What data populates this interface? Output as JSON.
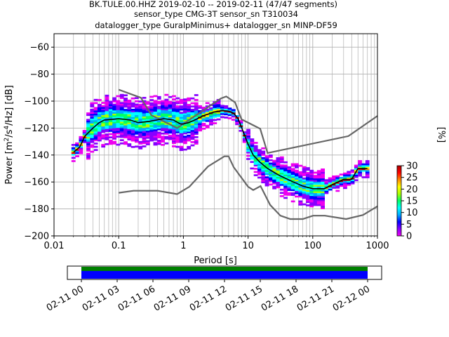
{
  "chart_data": {
    "type": "heatmap",
    "title_lines": [
      "BK.TULE.00.HHZ   2019-02-10 -- 2019-02-11  (47/47 segments)",
      "sensor_type CMG-3T sensor_sn T310034",
      "datalogger_type GuralpMinimus+ datalogger_sn MINP-DF59"
    ],
    "xlabel": "Period [s]",
    "ylabel": "Power [m²/s⁴/Hz] [dB]",
    "x_scale": "log",
    "xlim": [
      0.01,
      1000
    ],
    "ylim": [
      -200,
      -50
    ],
    "x_ticks": [
      {
        "value": 0.01,
        "label": "0.01"
      },
      {
        "value": 0.1,
        "label": "0.1"
      },
      {
        "value": 1,
        "label": "1"
      },
      {
        "value": 10,
        "label": "10"
      },
      {
        "value": 100,
        "label": "100"
      },
      {
        "value": 1000,
        "label": "1000"
      }
    ],
    "y_ticks": [
      {
        "value": -60,
        "label": "−60"
      },
      {
        "value": -80,
        "label": "−80"
      },
      {
        "value": -100,
        "label": "−100"
      },
      {
        "value": -120,
        "label": "−120"
      },
      {
        "value": -140,
        "label": "−140"
      },
      {
        "value": -160,
        "label": "−160"
      },
      {
        "value": -180,
        "label": "−180"
      },
      {
        "value": -200,
        "label": "−200"
      }
    ],
    "grid": true,
    "grid_color": "#b0b0b0",
    "noise_model_color": "#666666",
    "mean_curve_color": "#000000",
    "high_noise_model": [
      [
        0.1,
        -91.5
      ],
      [
        0.22,
        -97.5
      ],
      [
        0.32,
        -110.5
      ],
      [
        0.8,
        -120
      ],
      [
        3.8,
        -98
      ],
      [
        4.6,
        -96.5
      ],
      [
        6.3,
        -101
      ],
      [
        7.9,
        -113.5
      ],
      [
        15.4,
        -120.5
      ],
      [
        20,
        -138.5
      ],
      [
        354.8,
        -126
      ],
      [
        1000,
        -111
      ]
    ],
    "low_noise_model": [
      [
        0.1,
        -168
      ],
      [
        0.17,
        -166.5
      ],
      [
        0.4,
        -166.5
      ],
      [
        0.8,
        -169
      ],
      [
        1.24,
        -163.5
      ],
      [
        2.4,
        -148.5
      ],
      [
        4.3,
        -141
      ],
      [
        5,
        -141
      ],
      [
        6,
        -149
      ],
      [
        10,
        -163.5
      ],
      [
        12,
        -166
      ],
      [
        15.6,
        -163
      ],
      [
        21.9,
        -177
      ],
      [
        31.6,
        -185
      ],
      [
        45,
        -187.5
      ],
      [
        70,
        -187.5
      ],
      [
        101,
        -185
      ],
      [
        154,
        -185
      ],
      [
        328,
        -187.5
      ],
      [
        600,
        -184.5
      ],
      [
        1000,
        -178
      ]
    ],
    "mean_psd": [
      [
        0.02,
        -138
      ],
      [
        0.025,
        -134
      ],
      [
        0.03,
        -126
      ],
      [
        0.04,
        -120
      ],
      [
        0.05,
        -116
      ],
      [
        0.06,
        -114
      ],
      [
        0.08,
        -113.5
      ],
      [
        0.1,
        -113
      ],
      [
        0.15,
        -114
      ],
      [
        0.2,
        -116
      ],
      [
        0.3,
        -115
      ],
      [
        0.5,
        -113
      ],
      [
        0.7,
        -114
      ],
      [
        0.9,
        -117
      ],
      [
        1,
        -117
      ],
      [
        1.2,
        -116
      ],
      [
        1.5,
        -114
      ],
      [
        2,
        -111
      ],
      [
        3,
        -108
      ],
      [
        4,
        -107
      ],
      [
        5,
        -107.5
      ],
      [
        6,
        -109
      ],
      [
        7,
        -113
      ],
      [
        8,
        -120
      ],
      [
        10,
        -132
      ],
      [
        12,
        -140
      ],
      [
        15,
        -145
      ],
      [
        20,
        -150
      ],
      [
        30,
        -155
      ],
      [
        50,
        -160
      ],
      [
        70,
        -163
      ],
      [
        100,
        -165
      ],
      [
        150,
        -165
      ],
      [
        200,
        -162
      ],
      [
        300,
        -158
      ],
      [
        400,
        -158
      ],
      [
        500,
        -150
      ],
      [
        600,
        -150
      ],
      [
        700,
        -150
      ]
    ],
    "colorbar": {
      "label": "[%]",
      "min": 0,
      "max": 30,
      "ticks": [
        0,
        5,
        10,
        15,
        20,
        25,
        30
      ],
      "colors": [
        "#ffffff",
        "#ee00ee",
        "#8800ff",
        "#0000ff",
        "#00aaff",
        "#00ffff",
        "#00ff66",
        "#aaff00",
        "#ffff00",
        "#ff8800",
        "#ff0000",
        "#aa0000"
      ]
    },
    "coverage": {
      "time_ticks": [
        "02-11 00",
        "02-11 03",
        "02-11 06",
        "02-11 09",
        "02-11 12",
        "02-11 15",
        "02-11 18",
        "02-11 21",
        "02-12 00"
      ],
      "segments_color": "#0000ff",
      "data_color": "#008000"
    }
  }
}
